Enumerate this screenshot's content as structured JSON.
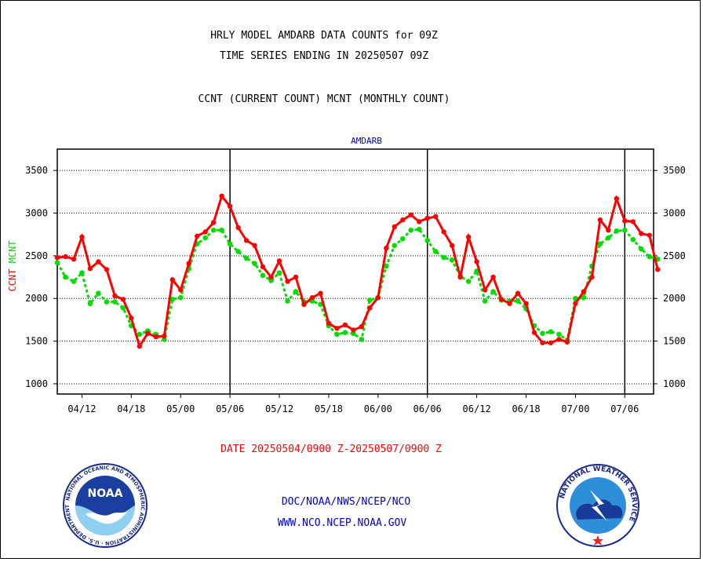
{
  "header": {
    "line1": "HRLY MODEL AMDARB DATA COUNTS for 09Z",
    "line2": "TIME SERIES ENDING IN 20250507 09Z",
    "line3": "CCNT (CURRENT COUNT) MCNT (MONTHLY COUNT)"
  },
  "footer": {
    "date_range": "DATE 20250504/0900 Z-20250507/0900 Z",
    "org": "DOC/NOAA/NWS/NCEP/NCO",
    "url": "WWW.NCO.NCEP.NOAA.GOV"
  },
  "logos": {
    "left": {
      "name": "noaa-logo",
      "text": "NOAA",
      "ring_text": "NATIONAL OCEANIC AND ATMOSPHERIC ADMINISTRATION · U.S. DEPARTMENT OF COMMERCE"
    },
    "right": {
      "name": "nws-logo",
      "ring_text": "NATIONAL WEATHER SERVICE"
    }
  },
  "colors": {
    "ccnt": "#ff0000",
    "mcnt": "#00dd00",
    "title_blue": "#0000cc",
    "date_red": "#ff0000"
  },
  "chart_data": {
    "type": "line",
    "title": "AMDARB",
    "ylabel": [
      {
        "text": "CCNT",
        "color": "#ff0000"
      },
      {
        "text": "MCNT",
        "color": "#00dd00"
      }
    ],
    "ylim": [
      880,
      3750
    ],
    "yticks": [
      1000,
      1500,
      2000,
      2500,
      3000,
      3500
    ],
    "xlim": [
      0,
      72.5
    ],
    "x_tick_labels": [
      "04/12",
      "04/18",
      "05/00",
      "05/06",
      "05/12",
      "05/18",
      "06/00",
      "06/06",
      "06/12",
      "06/18",
      "07/00",
      "07/06"
    ],
    "x_tick_positions": [
      3,
      9,
      15,
      21,
      27,
      33,
      39,
      45,
      51,
      57,
      63,
      69
    ],
    "day_boundaries": [
      21,
      45,
      69
    ],
    "grid": true,
    "series": [
      {
        "name": "CCNT",
        "color": "#ff0000",
        "values": [
          2480,
          2490,
          2460,
          2720,
          2350,
          2430,
          2340,
          2030,
          1990,
          1770,
          1440,
          1590,
          1550,
          1560,
          2220,
          2100,
          2410,
          2730,
          2780,
          2890,
          3200,
          3080,
          2830,
          2680,
          2620,
          2370,
          2250,
          2440,
          2200,
          2250,
          1930,
          2010,
          2060,
          1710,
          1650,
          1690,
          1630,
          1670,
          1890,
          2010,
          2590,
          2840,
          2920,
          2980,
          2900,
          2940,
          2960,
          2780,
          2620,
          2250,
          2720,
          2430,
          2100,
          2250,
          1990,
          1940,
          2060,
          1940,
          1600,
          1480,
          1480,
          1520,
          1490,
          1940,
          2080,
          2250,
          2920,
          2800,
          3170,
          2910,
          2900,
          2760,
          2740,
          2340
        ]
      },
      {
        "name": "MCNT",
        "color": "#00dd00",
        "values": [
          2420,
          2250,
          2200,
          2300,
          1940,
          2060,
          1960,
          1960,
          1890,
          1680,
          1580,
          1620,
          1580,
          1520,
          1990,
          2010,
          2350,
          2640,
          2710,
          2800,
          2800,
          2640,
          2550,
          2470,
          2410,
          2270,
          2210,
          2300,
          1970,
          2080,
          1960,
          1970,
          1930,
          1680,
          1580,
          1600,
          1590,
          1520,
          1980,
          2010,
          2380,
          2620,
          2700,
          2800,
          2810,
          2680,
          2550,
          2480,
          2450,
          2260,
          2200,
          2320,
          1970,
          2080,
          1980,
          1970,
          1970,
          1880,
          1680,
          1590,
          1610,
          1580,
          1510,
          2000,
          2010,
          2380,
          2640,
          2710,
          2790,
          2800,
          2690,
          2580,
          2490,
          2460
        ]
      }
    ]
  }
}
